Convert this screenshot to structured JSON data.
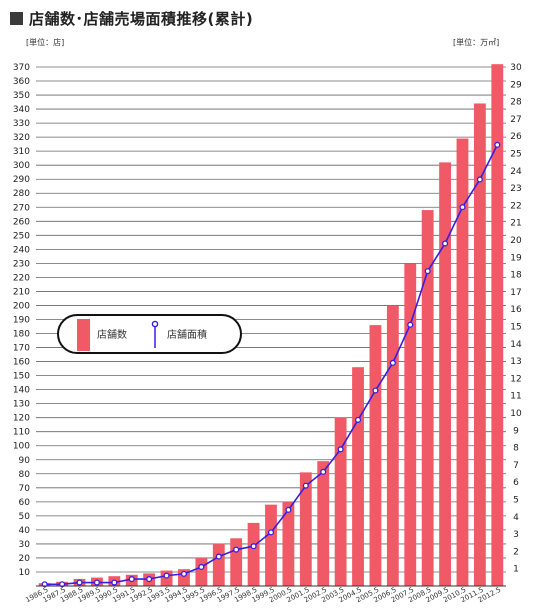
{
  "title": "店舗数･店舗売場面積推移(累計)",
  "unit_left": "[単位：店]",
  "unit_right": "[単位：万㎡]",
  "legend": {
    "bar_label": "店舗数",
    "line_label": "店舗面積"
  },
  "colors": {
    "bar": "#f05a66",
    "line": "#3a1ee0",
    "grid": "#666666",
    "title_square": "#3a3a3a"
  },
  "chart_data": {
    "type": "bar+line",
    "categories": [
      "1986.5",
      "1987.5",
      "1988.5",
      "1989.5",
      "1990.5",
      "1991.5",
      "1992.5",
      "1993.5",
      "1994.5",
      "1995.5",
      "1996.5",
      "1997.5",
      "1998.5",
      "1999.5",
      "2000.5",
      "2001.5",
      "2002.5",
      "2003.5",
      "2004.5",
      "2005.5",
      "2006.5",
      "2007.5",
      "2008.5",
      "2009.5",
      "2010.5",
      "2011.5",
      "2012.5"
    ],
    "series": [
      {
        "name": "店舗数",
        "type": "bar",
        "axis": "left",
        "values": [
          2,
          3,
          5,
          6,
          7,
          8,
          9,
          11,
          12,
          20,
          30,
          34,
          45,
          58,
          60,
          81,
          89,
          120,
          156,
          186,
          200,
          230,
          268,
          302,
          319,
          344,
          372
        ]
      },
      {
        "name": "店舗面積",
        "type": "line",
        "axis": "right",
        "values": [
          0.1,
          0.1,
          0.2,
          0.2,
          0.2,
          0.4,
          0.4,
          0.6,
          0.7,
          1.1,
          1.7,
          2.1,
          2.3,
          3.1,
          4.4,
          5.8,
          6.6,
          7.9,
          9.6,
          11.3,
          12.9,
          15.1,
          18.2,
          19.8,
          21.9,
          23.5,
          25.5
        ]
      }
    ],
    "ylim_left": [
      0,
      370
    ],
    "yticks_left": [
      10,
      20,
      30,
      40,
      50,
      60,
      70,
      80,
      90,
      100,
      110,
      120,
      130,
      140,
      150,
      160,
      170,
      180,
      190,
      200,
      210,
      220,
      230,
      240,
      250,
      260,
      270,
      280,
      290,
      300,
      310,
      320,
      330,
      340,
      350,
      360,
      370
    ],
    "ylim_right": [
      0,
      30
    ],
    "yticks_right": [
      1,
      2,
      3,
      4,
      5,
      6,
      7,
      8,
      9,
      10,
      11,
      12,
      13,
      14,
      15,
      16,
      17,
      18,
      19,
      20,
      21,
      22,
      23,
      24,
      25,
      26,
      27,
      28,
      29,
      30
    ],
    "grid": true,
    "legend_position": "middle-left"
  }
}
